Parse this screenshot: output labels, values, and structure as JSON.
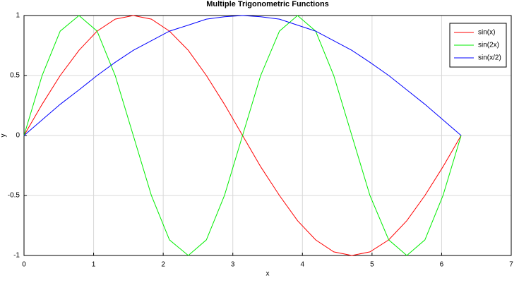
{
  "chart_data": {
    "type": "line",
    "title": "Multiple Trigonometric Functions",
    "x_label": "x",
    "y_label": "y",
    "x": [
      0,
      0.26,
      0.52,
      0.79,
      1.05,
      1.31,
      1.57,
      1.83,
      2.09,
      2.36,
      2.62,
      2.88,
      3.14,
      3.4,
      3.67,
      3.93,
      4.19,
      4.45,
      4.71,
      4.97,
      5.24,
      5.5,
      5.76,
      6.02,
      6.28
    ],
    "series": [
      {
        "name": "sin(x)",
        "color": "#ff0000",
        "values": [
          0,
          0.26,
          0.5,
          0.71,
          0.87,
          0.97,
          1,
          0.97,
          0.87,
          0.71,
          0.5,
          0.26,
          0,
          -0.26,
          -0.5,
          -0.71,
          -0.87,
          -0.97,
          -1,
          -0.97,
          -0.87,
          -0.71,
          -0.5,
          -0.26,
          0
        ]
      },
      {
        "name": "sin(2x)",
        "color": "#00ee00",
        "values": [
          0,
          0.5,
          0.87,
          1,
          0.87,
          0.5,
          0,
          -0.5,
          -0.87,
          -1,
          -0.87,
          -0.5,
          0,
          0.5,
          0.87,
          1,
          0.87,
          0.5,
          0,
          -0.5,
          -0.87,
          -1,
          -0.87,
          -0.5,
          0
        ]
      },
      {
        "name": "sin(x/2)",
        "color": "#0000ff",
        "values": [
          0,
          0.13,
          0.26,
          0.38,
          0.5,
          0.61,
          0.71,
          0.79,
          0.87,
          0.92,
          0.97,
          0.99,
          1,
          0.99,
          0.97,
          0.92,
          0.87,
          0.79,
          0.71,
          0.61,
          0.5,
          0.38,
          0.26,
          0.13,
          0
        ]
      }
    ],
    "xlim": [
      0,
      7
    ],
    "xticks": [
      0,
      1,
      2,
      3,
      4,
      5,
      6,
      7
    ],
    "ylim": [
      -1,
      1
    ],
    "yticks": [
      -1,
      -0.5,
      0,
      0.5,
      1
    ],
    "grid": true,
    "legend_position": "upper-right"
  }
}
